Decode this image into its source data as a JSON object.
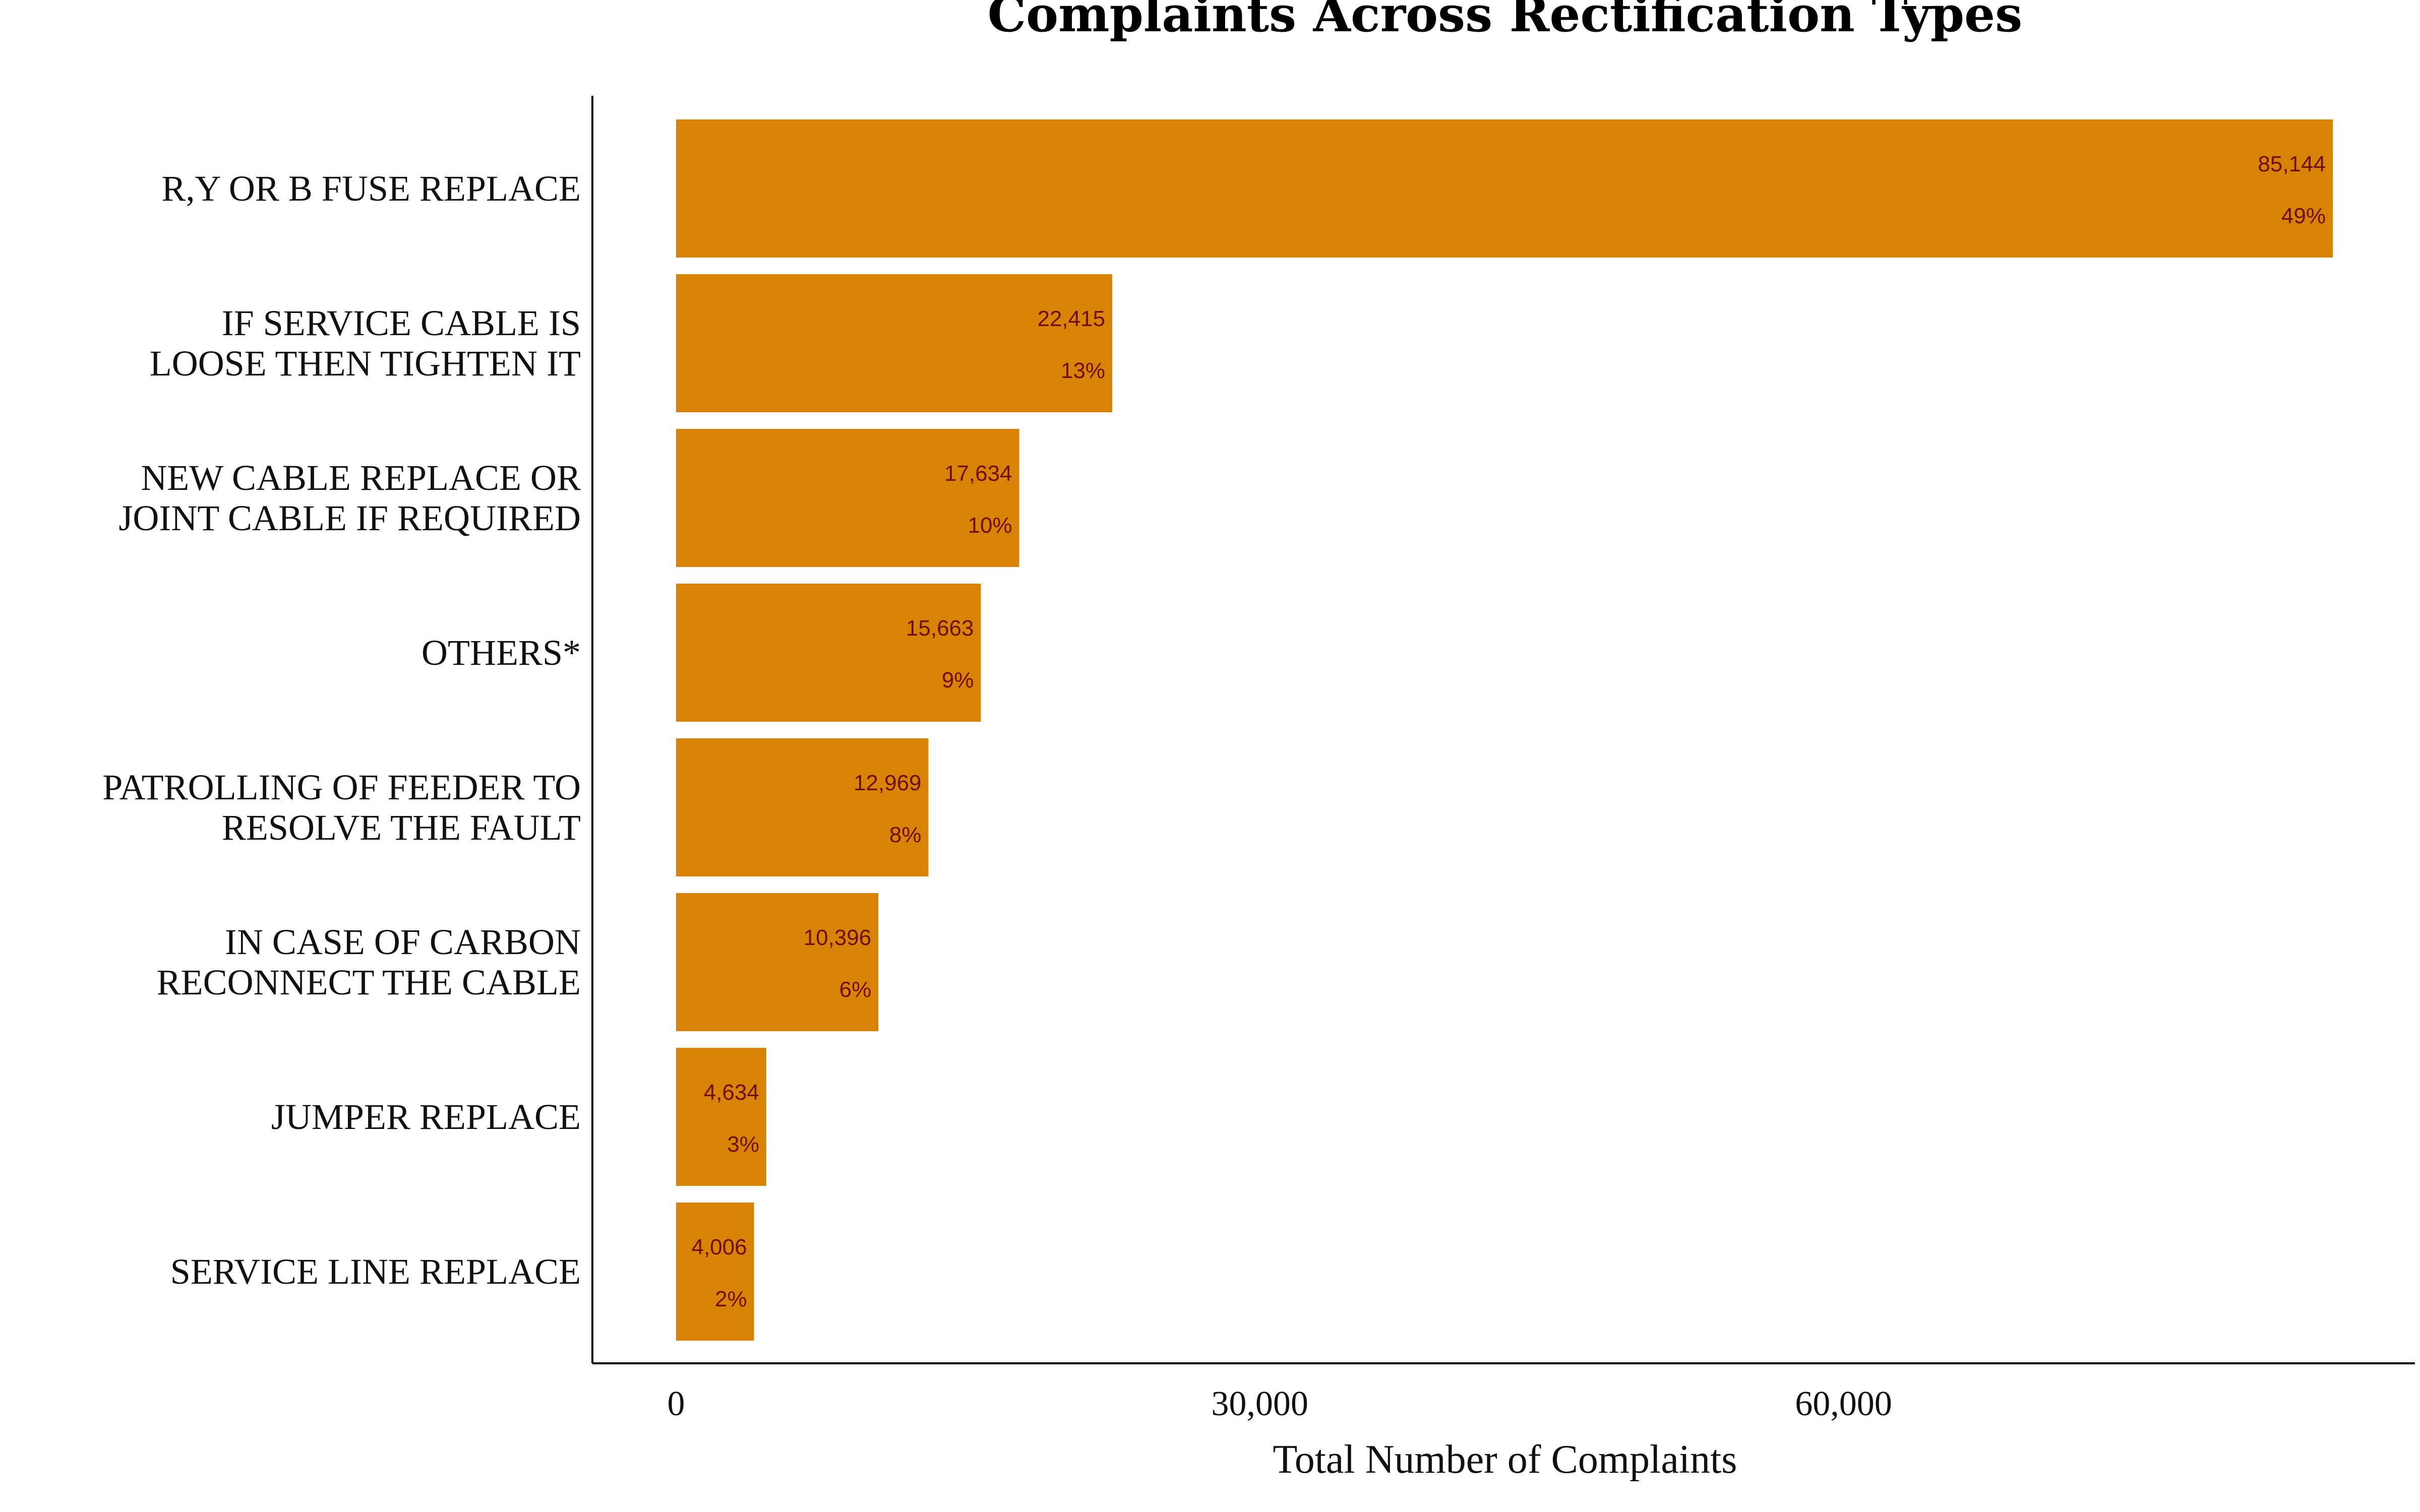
{
  "chart_data": {
    "type": "bar",
    "orientation": "horizontal",
    "title": "Complaints Across Rectification Types",
    "xlabel": "Total Number of Complaints",
    "ylabel": "",
    "xlim": [
      0,
      85144
    ],
    "xticks": [
      0,
      30000,
      60000
    ],
    "xtick_labels": [
      "0",
      "30,000",
      "60,000"
    ],
    "categories": [
      [
        "R,Y OR B FUSE REPLACE"
      ],
      [
        "IF SERVICE CABLE IS",
        "LOOSE THEN TIGHTEN IT"
      ],
      [
        "NEW CABLE REPLACE OR",
        "JOINT CABLE IF REQUIRED"
      ],
      [
        "OTHERS*"
      ],
      [
        "PATROLLING OF FEEDER TO",
        "RESOLVE THE FAULT"
      ],
      [
        "IN CASE OF CARBON",
        "RECONNECT THE CABLE"
      ],
      [
        "JUMPER REPLACE"
      ],
      [
        "SERVICE LINE REPLACE"
      ]
    ],
    "values": [
      85144,
      22415,
      17634,
      15663,
      12969,
      10396,
      4634,
      4006
    ],
    "value_labels": [
      "85,144",
      "22,415",
      "17,634",
      "15,663",
      "12,969",
      "10,396",
      "4,634",
      "4,006"
    ],
    "percent_labels": [
      "49%",
      "13%",
      "10%",
      "9%",
      "8%",
      "6%",
      "3%",
      "2%"
    ],
    "grid": false,
    "legend": "none",
    "colors": {
      "bar": "#d88306",
      "data_label": "#6b0f0f",
      "axis": "#000000"
    }
  }
}
